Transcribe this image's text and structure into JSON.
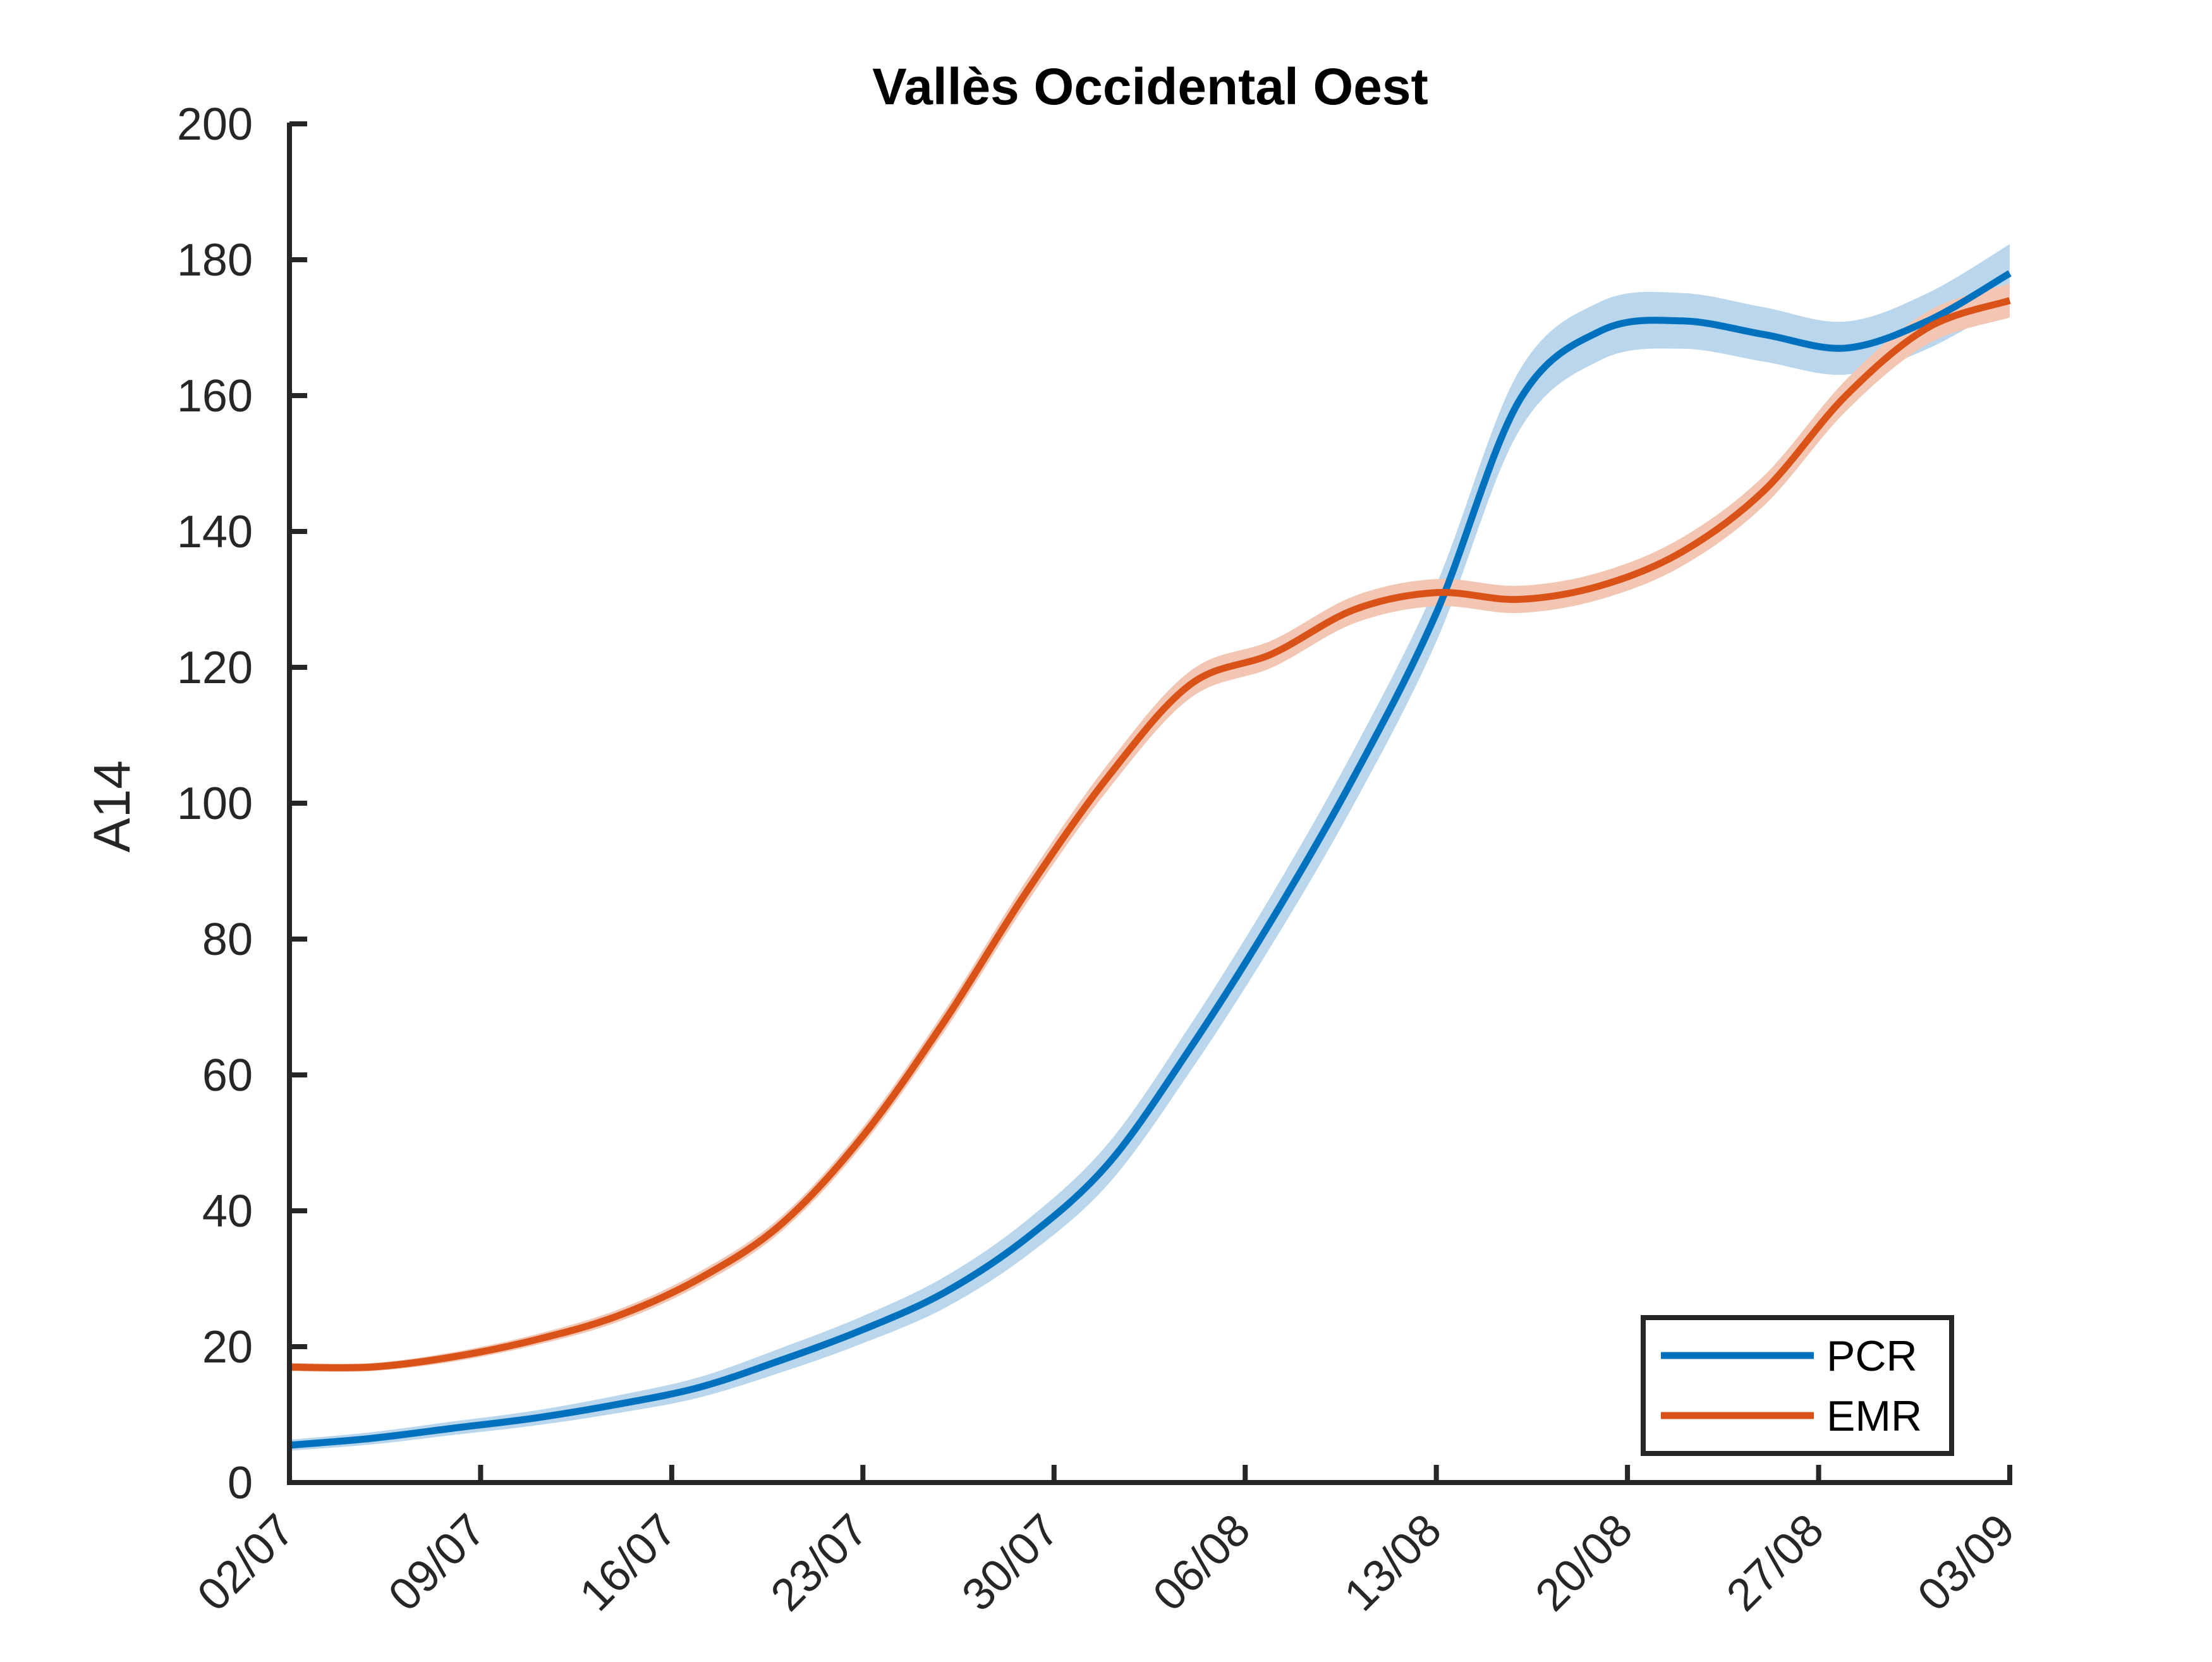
{
  "chart_data": {
    "type": "line",
    "title": "Vallès Occidental Oest",
    "xlabel": "",
    "ylabel": "A14",
    "x": [
      "2020-07-02",
      "2020-07-05",
      "2020-07-08",
      "2020-07-11",
      "2020-07-14",
      "2020-07-17",
      "2020-07-20",
      "2020-07-23",
      "2020-07-26",
      "2020-07-29",
      "2020-08-01",
      "2020-08-04",
      "2020-08-07",
      "2020-08-10",
      "2020-08-13",
      "2020-08-16",
      "2020-08-19",
      "2020-08-22",
      "2020-08-25",
      "2020-08-28",
      "2020-08-31",
      "2020-09-03"
    ],
    "xticks": [
      "02/07",
      "09/07",
      "16/07",
      "23/07",
      "30/07",
      "06/08",
      "13/08",
      "20/08",
      "27/08",
      "03/09"
    ],
    "ylim": [
      0,
      200
    ],
    "yticks": [
      0,
      20,
      40,
      60,
      80,
      100,
      120,
      140,
      160,
      180,
      200
    ],
    "grid": false,
    "legend_position": "bottom-right",
    "series": [
      {
        "name": "PCR",
        "color": "#0072BD",
        "band_color": "#B9D6EC",
        "values": [
          5.5,
          6.5,
          8,
          9.5,
          11.5,
          14,
          18,
          22.5,
          28,
          36,
          47,
          64,
          83,
          104,
          128,
          159,
          169.5,
          171,
          169,
          167,
          171,
          178
        ],
        "band_halfwidth": [
          0.8,
          0.9,
          1.0,
          1.1,
          1.3,
          1.5,
          1.8,
          2.0,
          2.3,
          2.6,
          3.0,
          3.4,
          3.7,
          4.0,
          4.2,
          4.4,
          4.3,
          4.1,
          4.0,
          3.9,
          4.1,
          4.3
        ]
      },
      {
        "name": "EMR",
        "color": "#D95319",
        "band_color": "#F2C6B2",
        "values": [
          17,
          17,
          18.5,
          21,
          24.5,
          30,
          38,
          51,
          68,
          87,
          104,
          117.5,
          122,
          128.5,
          131,
          130,
          132,
          137,
          146,
          160,
          170,
          174
        ],
        "band_halfwidth": [
          0.6,
          0.6,
          0.7,
          0.8,
          0.9,
          1.0,
          1.1,
          1.3,
          1.5,
          1.7,
          1.9,
          2.0,
          2.0,
          2.0,
          2.0,
          2.0,
          2.0,
          2.1,
          2.2,
          2.3,
          2.4,
          2.5
        ]
      }
    ]
  }
}
